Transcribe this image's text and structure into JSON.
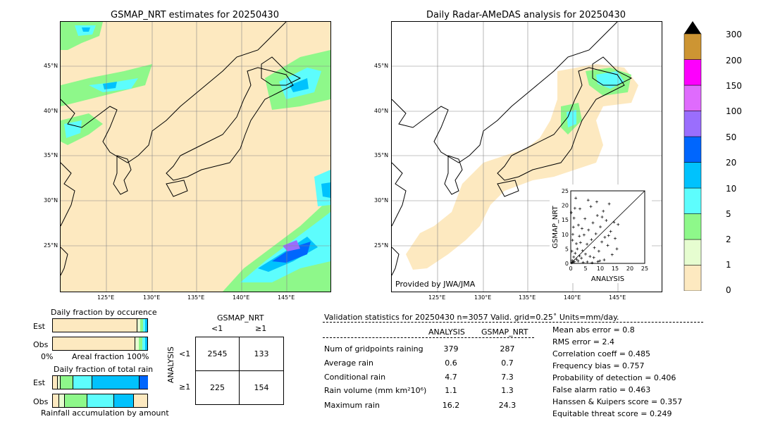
{
  "left_map": {
    "title": "GSMAP_NRT estimates for 20250430",
    "lat_labels": [
      "45°N",
      "40°N",
      "35°N",
      "30°N",
      "25°N"
    ],
    "lon_labels": [
      "125°E",
      "130°E",
      "135°E",
      "140°E",
      "145°E"
    ]
  },
  "right_map": {
    "title": "Daily Radar-AMeDAS analysis for 20250430",
    "lat_labels": [
      "45°N",
      "40°N",
      "35°N",
      "30°N",
      "25°N"
    ],
    "lon_labels": [
      "125°E",
      "130°E",
      "135°E",
      "140°E",
      "145°E"
    ],
    "credit": "Provided by JWA/JMA"
  },
  "colorbar": {
    "ticks": [
      "0",
      "1",
      "2",
      "5",
      "10",
      "20",
      "50",
      "100",
      "150",
      "200",
      "300"
    ],
    "colors": [
      "#fde9c0",
      "#e6fdd0",
      "#8ef88a",
      "#5dfdfd",
      "#00c2fd",
      "#0066fd",
      "#9a6efd",
      "#df6bfd",
      "#fd00fd",
      "#cd9533"
    ]
  },
  "fraction_occurrence": {
    "title": "Daily fraction by occurence",
    "row_labels": [
      "Est",
      "Obs"
    ],
    "axis_left": "0%",
    "axis_mid": "Areal fraction",
    "axis_right": "100%"
  },
  "fraction_total": {
    "title": "Daily fraction of total rain",
    "row_labels": [
      "Est",
      "Obs"
    ],
    "footer": "Rainfall accumulation by amount"
  },
  "contingency": {
    "title": "GSMAP_NRT",
    "col_labels": [
      "<1",
      "≥1"
    ],
    "row_axis": "ANALYSIS",
    "row_labels": [
      "<1",
      "≥1"
    ],
    "cells": [
      [
        "2545",
        "133"
      ],
      [
        "225",
        "154"
      ]
    ]
  },
  "validation": {
    "header": "Validation statistics for 20250430  n=3057 Valid. grid=0.25˚ Units=mm/day.",
    "col_analysis": "ANALYSIS",
    "col_gsmap": "GSMAP_NRT",
    "rows": [
      {
        "label": "Num of gridpoints raining",
        "analysis": "379",
        "gsmap": "287"
      },
      {
        "label": "Average rain",
        "analysis": "0.6",
        "gsmap": "0.7"
      },
      {
        "label": "Conditional rain",
        "analysis": "4.7",
        "gsmap": "7.3"
      },
      {
        "label": "Rain volume (mm km²10⁶)",
        "analysis": "1.1",
        "gsmap": "1.3"
      },
      {
        "label": "Maximum rain",
        "analysis": "16.2",
        "gsmap": "24.3"
      }
    ],
    "scores": [
      "Mean abs error =    0.8",
      "RMS error =    2.4",
      "Correlation coeff =  0.485",
      "Frequency bias =  0.757",
      "Probability of detection =  0.406",
      "False alarm ratio =  0.463",
      "Hanssen & Kuipers score =  0.357",
      "Equitable threat score =  0.249"
    ]
  },
  "chart_data": {
    "type": "scatter",
    "xlabel": "ANALYSIS",
    "ylabel": "GSMAP_NRT",
    "xlim": [
      0,
      25
    ],
    "ylim": [
      0,
      25
    ],
    "xticks": [
      "0",
      "5",
      "10",
      "15",
      "20",
      "25"
    ],
    "yticks": [
      "0",
      "5",
      "10",
      "15",
      "20",
      "25"
    ],
    "diagonal": true,
    "points": [
      [
        0.3,
        0.2
      ],
      [
        0.5,
        1.0
      ],
      [
        0.8,
        0.4
      ],
      [
        1.0,
        2.2
      ],
      [
        1.2,
        0.6
      ],
      [
        1.5,
        3.5
      ],
      [
        2.0,
        1.4
      ],
      [
        2.2,
        5.0
      ],
      [
        2.5,
        0.8
      ],
      [
        3.0,
        2.6
      ],
      [
        3.3,
        7.2
      ],
      [
        3.6,
        1.8
      ],
      [
        4.0,
        4.4
      ],
      [
        4.5,
        9.8
      ],
      [
        5.0,
        3.2
      ],
      [
        5.5,
        6.6
      ],
      [
        6.0,
        11.5
      ],
      [
        6.5,
        2.4
      ],
      [
        7.0,
        8.2
      ],
      [
        7.5,
        14.0
      ],
      [
        8.0,
        5.4
      ],
      [
        8.5,
        10.2
      ],
      [
        9.0,
        16.5
      ],
      [
        9.5,
        4.2
      ],
      [
        10.0,
        12.6
      ],
      [
        10.5,
        7.4
      ],
      [
        11.0,
        18.0
      ],
      [
        11.5,
        9.0
      ],
      [
        12.0,
        14.8
      ],
      [
        12.5,
        6.2
      ],
      [
        13.0,
        20.5
      ],
      [
        13.5,
        11.0
      ],
      [
        14.0,
        3.0
      ],
      [
        15.0,
        8.6
      ],
      [
        16.0,
        13.4
      ],
      [
        0.4,
        4.2
      ],
      [
        0.6,
        8.0
      ],
      [
        0.9,
        12.5
      ],
      [
        1.1,
        15.6
      ],
      [
        1.4,
        19.0
      ],
      [
        1.7,
        22.5
      ],
      [
        0.2,
        17.5
      ],
      [
        2.6,
        13.2
      ],
      [
        3.1,
        18.8
      ],
      [
        4.2,
        0.3
      ],
      [
        5.6,
        0.5
      ],
      [
        7.2,
        0.2
      ],
      [
        9.2,
        0.6
      ],
      [
        11.3,
        1.2
      ],
      [
        6.8,
        19.6
      ],
      [
        8.8,
        21.2
      ],
      [
        10.6,
        16.0
      ],
      [
        12.8,
        9.6
      ],
      [
        14.6,
        14.2
      ],
      [
        15.6,
        5.0
      ],
      [
        4.8,
        15.4
      ],
      [
        5.9,
        21.8
      ],
      [
        7.8,
        2.0
      ],
      [
        9.8,
        0.9
      ],
      [
        3.8,
        12.0
      ],
      [
        2.9,
        9.4
      ],
      [
        1.9,
        6.8
      ],
      [
        0.7,
        10.0
      ]
    ]
  }
}
